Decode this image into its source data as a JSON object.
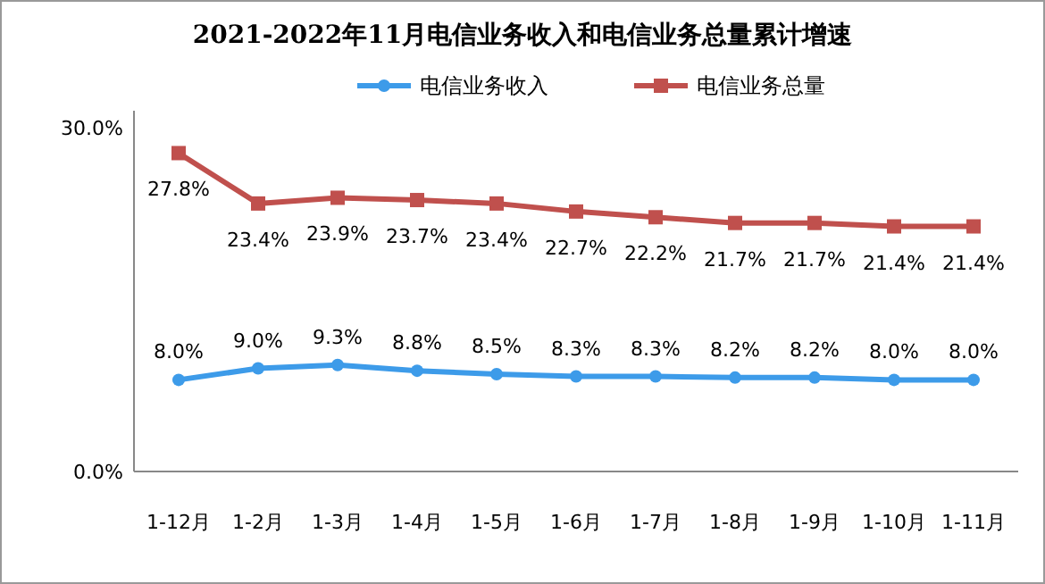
{
  "chart_data": {
    "type": "line",
    "title": "2021-2022年11月电信业务收入和电信业务总量累计增速",
    "categories": [
      "1-12月",
      "1-2月",
      "1-3月",
      "1-4月",
      "1-5月",
      "1-6月",
      "1-7月",
      "1-8月",
      "1-9月",
      "1-10月",
      "1-11月"
    ],
    "series": [
      {
        "name": "电信业务收入",
        "color": "#3d9be9",
        "marker": "circle",
        "values": [
          8.0,
          9.0,
          9.3,
          8.8,
          8.5,
          8.3,
          8.3,
          8.2,
          8.2,
          8.0,
          8.0
        ],
        "value_labels": [
          "8.0%",
          "9.0%",
          "9.3%",
          "8.8%",
          "8.5%",
          "8.3%",
          "8.3%",
          "8.2%",
          "8.2%",
          "8.0%",
          "8.0%"
        ]
      },
      {
        "name": "电信业务总量",
        "color": "#c0504d",
        "marker": "square",
        "values": [
          27.8,
          23.4,
          23.9,
          23.7,
          23.4,
          22.7,
          22.2,
          21.7,
          21.7,
          21.4,
          21.4
        ],
        "value_labels": [
          "27.8%",
          "23.4%",
          "23.9%",
          "23.7%",
          "23.4%",
          "22.7%",
          "22.2%",
          "21.7%",
          "21.7%",
          "21.4%",
          "21.4%"
        ]
      }
    ],
    "ylim": [
      0,
      31.5
    ],
    "yticks": [
      {
        "value": 0,
        "label": "0.0%"
      },
      {
        "value": 30,
        "label": "30.0%"
      }
    ],
    "legend": "top",
    "grid": false
  }
}
